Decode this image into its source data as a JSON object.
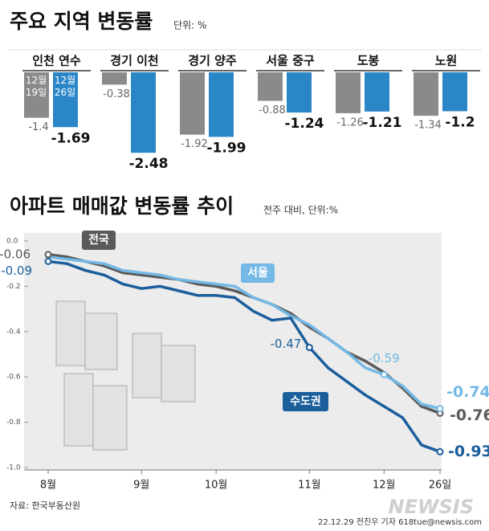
{
  "chart_data": [
    {
      "type": "bar",
      "title": "주요 지역 변동률",
      "subtitle": "단위: %",
      "categories": [
        "인천 연수",
        "경기 이천",
        "경기 양주",
        "서울 중구",
        "도봉",
        "노원"
      ],
      "series": [
        {
          "name": "12월 19일",
          "color": "#8a8a8a",
          "values": [
            -1.4,
            -0.38,
            -1.92,
            -0.88,
            -1.26,
            -1.34
          ]
        },
        {
          "name": "12월 26일",
          "color": "#2b86c8",
          "values": [
            -1.69,
            -2.48,
            -1.99,
            -1.24,
            -1.21,
            -1.2
          ]
        }
      ],
      "ylim": [
        -2.5,
        0
      ]
    },
    {
      "type": "line",
      "title": "아파트 매매값 변동률 추이",
      "subtitle": "전주 대비, 단위:%",
      "categories": [
        "8월",
        null,
        null,
        null,
        null,
        "9월",
        null,
        null,
        null,
        "10월",
        null,
        null,
        null,
        null,
        "11월",
        null,
        null,
        null,
        "12월",
        null,
        null,
        "26일"
      ],
      "series": [
        {
          "name": "전국",
          "color": "#5a5a5a",
          "values": [
            -0.06,
            -0.07,
            -0.09,
            -0.11,
            -0.14,
            -0.15,
            -0.16,
            -0.17,
            -0.19,
            -0.2,
            -0.22,
            -0.25,
            -0.28,
            -0.32,
            -0.38,
            -0.43,
            -0.49,
            -0.53,
            -0.58,
            -0.65,
            -0.73,
            -0.76
          ],
          "value_labels": [
            "-0.06",
            null,
            null,
            null,
            null,
            null,
            null,
            null,
            null,
            null,
            null,
            null,
            null,
            null,
            null,
            null,
            null,
            null,
            null,
            null,
            null,
            "-0.76"
          ]
        },
        {
          "name": "서울",
          "color": "#74b8e6",
          "values": [
            -0.07,
            -0.08,
            -0.09,
            -0.1,
            -0.13,
            -0.14,
            -0.15,
            -0.17,
            -0.18,
            -0.19,
            -0.2,
            -0.25,
            -0.28,
            -0.33,
            -0.37,
            -0.43,
            -0.49,
            -0.56,
            -0.59,
            -0.64,
            -0.72,
            -0.74
          ],
          "value_labels": [
            null,
            null,
            null,
            null,
            null,
            null,
            null,
            null,
            null,
            null,
            null,
            null,
            null,
            null,
            null,
            null,
            null,
            null,
            "-0.59",
            null,
            null,
            "-0.74"
          ]
        },
        {
          "name": "수도권",
          "color": "#1b5e9c",
          "values": [
            -0.09,
            -0.1,
            -0.13,
            -0.15,
            -0.19,
            -0.21,
            -0.2,
            -0.22,
            -0.24,
            -0.24,
            -0.25,
            -0.31,
            -0.35,
            -0.34,
            -0.47,
            -0.56,
            -0.62,
            -0.68,
            -0.73,
            -0.78,
            -0.9,
            -0.93
          ],
          "value_labels": [
            "-0.09",
            null,
            null,
            null,
            null,
            null,
            null,
            null,
            null,
            null,
            null,
            null,
            null,
            null,
            "-0.47",
            null,
            null,
            null,
            null,
            null,
            null,
            "-0.93"
          ]
        }
      ],
      "ylim": [
        -1.0,
        0.0
      ],
      "yticks": [
        {
          "value": 0.0,
          "label": "0.0"
        },
        -0.2,
        -0.4,
        -0.6,
        -0.8,
        {
          "value": -1.0,
          "label": "-1.0"
        }
      ],
      "grid": false
    }
  ],
  "footer": {
    "source": "자료: 한국부동산원",
    "credit": "22.12.29 전진우 기자 618tue@newsis.com",
    "watermark": "NEWSIS"
  }
}
